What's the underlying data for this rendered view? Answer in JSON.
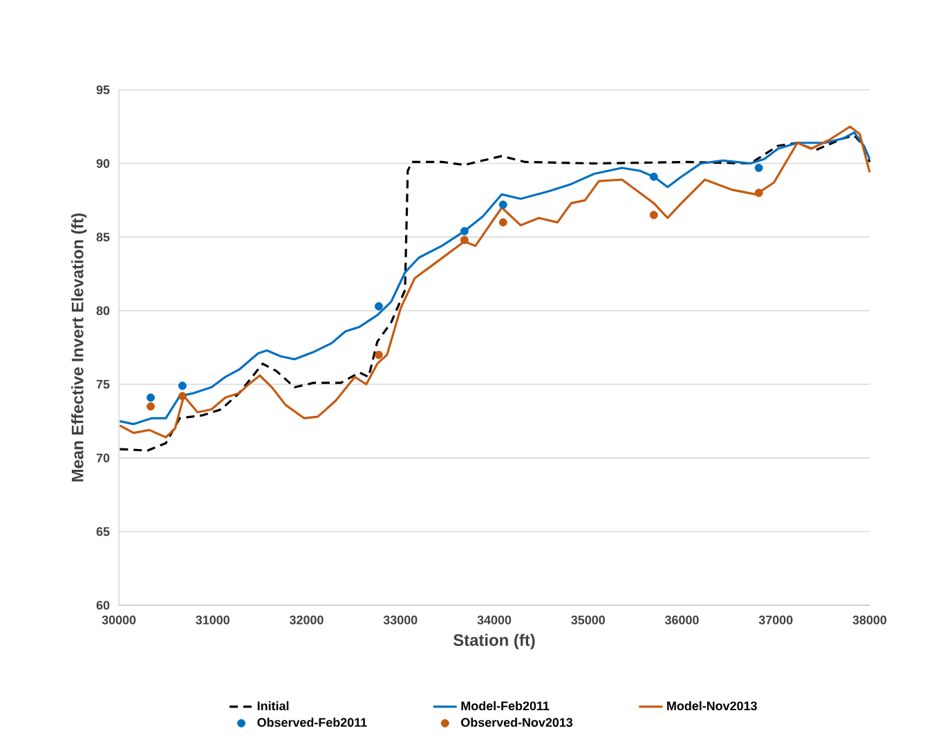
{
  "chart_data": {
    "type": "line",
    "xlabel": "Station (ft)",
    "ylabel": "Mean Effective Invert Elevation (ft)",
    "xlim": [
      30000,
      38000
    ],
    "xticks": [
      30000,
      31000,
      32000,
      33000,
      34000,
      35000,
      36000,
      37000,
      38000
    ],
    "ylim": [
      60,
      95
    ],
    "yticks": [
      60,
      65,
      70,
      75,
      80,
      85,
      90,
      95
    ],
    "grid": "y",
    "legend": "bottom",
    "series": [
      {
        "name": "Initial",
        "line_style": "dashed",
        "marker": "none",
        "color": "#000000",
        "x": [
          30010,
          30304,
          30500,
          30648,
          30893,
          31090,
          31281,
          31532,
          31679,
          31871,
          32075,
          32365,
          32563,
          32661,
          32754,
          32901,
          33049,
          33078,
          33122,
          33446,
          33682,
          33878,
          34080,
          34330,
          35066,
          36053,
          36730,
          37024,
          37230,
          37422,
          37717,
          37835,
          37938,
          38000
        ],
        "values": [
          70.6,
          70.5,
          71.0,
          72.7,
          72.9,
          73.3,
          74.4,
          76.4,
          75.9,
          74.8,
          75.1,
          75.1,
          75.8,
          75.5,
          77.9,
          79.2,
          81.4,
          89.5,
          90.1,
          90.1,
          89.9,
          90.2,
          90.5,
          90.1,
          90.0,
          90.1,
          90.0,
          91.2,
          91.4,
          90.9,
          91.7,
          91.9,
          91.2,
          90.1
        ]
      },
      {
        "name": "Model-Feb2011",
        "line_style": "solid",
        "marker": "none",
        "color": "#0070c0",
        "x": [
          30010,
          30157,
          30353,
          30500,
          30648,
          30795,
          30987,
          31134,
          31281,
          31483,
          31577,
          31724,
          31871,
          32075,
          32268,
          32415,
          32563,
          32754,
          32901,
          33049,
          33196,
          33441,
          33682,
          33878,
          34080,
          34282,
          34576,
          34820,
          35066,
          35361,
          35553,
          35700,
          35847,
          35994,
          36200,
          36436,
          36730,
          36877,
          37024,
          37230,
          37525,
          37717,
          37835,
          37938,
          38000
        ],
        "values": [
          72.5,
          72.3,
          72.7,
          72.7,
          74.2,
          74.4,
          74.8,
          75.5,
          76.0,
          77.1,
          77.3,
          76.9,
          76.7,
          77.2,
          77.8,
          78.6,
          78.9,
          79.7,
          80.6,
          82.6,
          83.6,
          84.4,
          85.4,
          86.4,
          87.9,
          87.6,
          88.1,
          88.6,
          89.3,
          89.7,
          89.5,
          89.1,
          88.4,
          89.1,
          90.0,
          90.2,
          90.0,
          90.3,
          91.0,
          91.4,
          91.4,
          91.7,
          92.1,
          91.2,
          90.3
        ]
      },
      {
        "name": "Model-Nov2013",
        "line_style": "solid",
        "marker": "none",
        "color": "#c55a11",
        "x": [
          30010,
          30157,
          30324,
          30500,
          30598,
          30692,
          30839,
          30987,
          31134,
          31281,
          31384,
          31502,
          31630,
          31776,
          31973,
          32120,
          32312,
          32514,
          32636,
          32754,
          32857,
          33004,
          33152,
          33343,
          33682,
          33799,
          34080,
          34282,
          34476,
          34673,
          34820,
          34967,
          35115,
          35361,
          35553,
          35700,
          35847,
          35994,
          36244,
          36539,
          36789,
          36980,
          37230,
          37377,
          37570,
          37791,
          37894,
          38000
        ],
        "values": [
          72.2,
          71.7,
          71.9,
          71.4,
          72.0,
          74.2,
          73.1,
          73.3,
          74.1,
          74.4,
          75.0,
          75.6,
          74.8,
          73.6,
          72.7,
          72.8,
          73.9,
          75.5,
          75.0,
          76.4,
          77.0,
          80.2,
          82.2,
          83.1,
          84.7,
          84.4,
          87.0,
          85.8,
          86.3,
          86.0,
          87.3,
          87.5,
          88.8,
          88.9,
          88.0,
          87.3,
          86.3,
          87.3,
          88.9,
          88.2,
          87.9,
          88.7,
          91.4,
          91.0,
          91.6,
          92.5,
          92.0,
          89.4
        ]
      },
      {
        "name": "Observed-Feb2011",
        "type": "scatter",
        "marker": "circle",
        "color": "#0070c0",
        "x": [
          30339,
          30677,
          32769,
          33682,
          34094,
          35700,
          36819
        ],
        "values": [
          74.1,
          74.9,
          80.3,
          85.4,
          87.2,
          89.1,
          89.7
        ]
      },
      {
        "name": "Observed-Nov2013",
        "type": "scatter",
        "marker": "circle",
        "color": "#c55a11",
        "x": [
          30339,
          30677,
          32769,
          33682,
          34094,
          35700,
          36819
        ],
        "values": [
          73.5,
          74.2,
          77.0,
          84.8,
          86.0,
          86.5,
          88.0
        ]
      }
    ]
  }
}
